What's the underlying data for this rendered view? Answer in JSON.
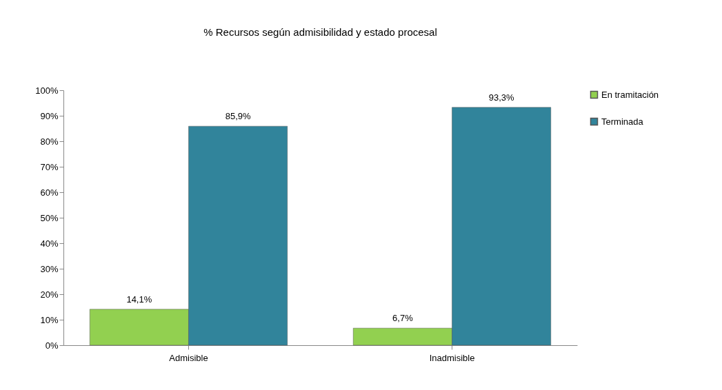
{
  "chart_data": {
    "type": "bar",
    "title": "% Recursos según admisibilidad y estado procesal",
    "categories": [
      "Admisible",
      "Inadmisible"
    ],
    "series": [
      {
        "name": "En tramitación",
        "color": "#92d050",
        "values": [
          14.1,
          6.7
        ],
        "value_labels": [
          "14,1%",
          "6,7%"
        ]
      },
      {
        "name": "Terminada",
        "color": "#31849b",
        "values": [
          85.9,
          93.3
        ],
        "value_labels": [
          "85,9%",
          "93,3%"
        ]
      }
    ],
    "ylim": [
      0,
      100
    ],
    "yticks": [
      {
        "value": 0,
        "label": "0%"
      },
      {
        "value": 10,
        "label": "10%"
      },
      {
        "value": 20,
        "label": "20%"
      },
      {
        "value": 30,
        "label": "30%"
      },
      {
        "value": 40,
        "label": "40%"
      },
      {
        "value": 50,
        "label": "50%"
      },
      {
        "value": 60,
        "label": "60%"
      },
      {
        "value": 70,
        "label": "70%"
      },
      {
        "value": 80,
        "label": "80%"
      },
      {
        "value": 90,
        "label": "90%"
      },
      {
        "value": 100,
        "label": "100%"
      }
    ],
    "grid": false,
    "legend": "right"
  }
}
